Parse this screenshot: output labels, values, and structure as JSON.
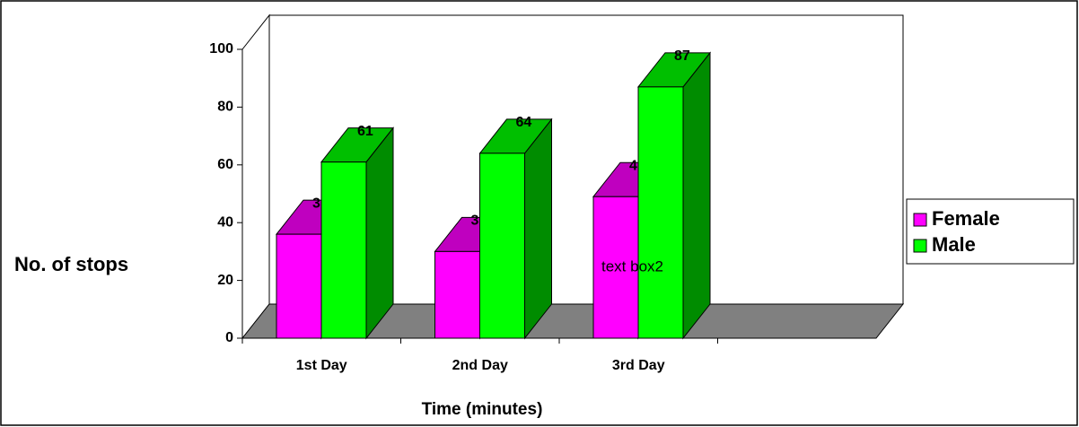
{
  "chart_data": {
    "type": "bar3d",
    "categories": [
      "1st Day",
      "2nd Day",
      "3rd Day",
      null
    ],
    "series": [
      {
        "name": "Female",
        "color": "#ff00ff",
        "values": [
          36,
          30,
          49,
          null
        ]
      },
      {
        "name": "Male",
        "color": "#00ff00",
        "values": [
          61,
          64,
          87,
          null
        ]
      }
    ],
    "ylim": [
      0,
      100
    ],
    "yticks": [
      0,
      20,
      40,
      60,
      80,
      100
    ],
    "y_label": "No. of stops",
    "x_label": "Time (minutes)",
    "annotation": "text box2",
    "legend": "right"
  }
}
